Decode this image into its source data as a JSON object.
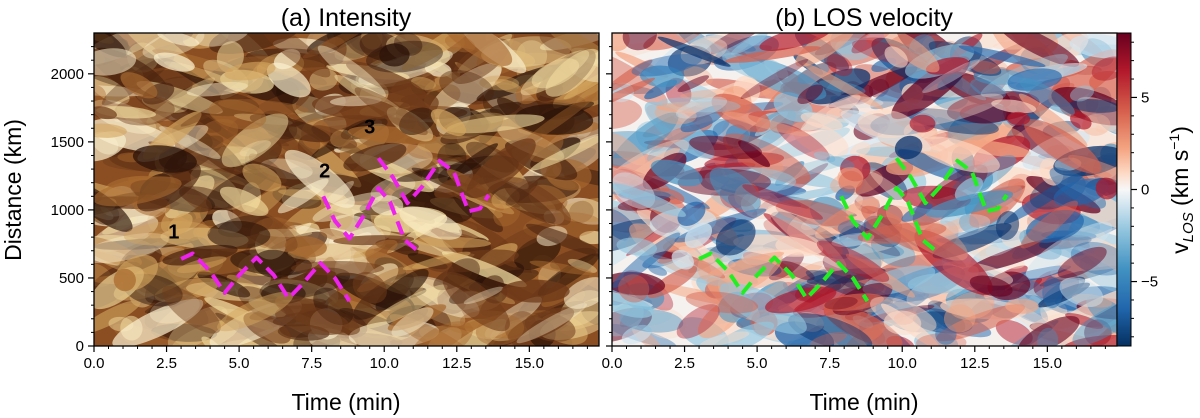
{
  "chart_data": [
    {
      "type": "heatmap",
      "title": "(a) Intensity",
      "xlabel": "Time (min)",
      "ylabel": "Distance (km)",
      "xlim": [
        0,
        17.4
      ],
      "ylim": [
        0,
        2300
      ],
      "xticks": [
        0.0,
        2.5,
        5.0,
        7.5,
        10.0,
        12.5,
        15.0
      ],
      "xtick_labels": [
        "0.0",
        "2.5",
        "5.0",
        "7.5",
        "10.0",
        "12.5",
        "15.0"
      ],
      "yticks": [
        0,
        500,
        1000,
        1500,
        2000
      ],
      "ytick_labels": [
        "0",
        "500",
        "1000",
        "1500",
        "2000"
      ],
      "colormap": "copper (dark brown to light cream)",
      "overlay_color": "#ee22ee",
      "annotations": [
        {
          "label": "1",
          "x": 2.75,
          "y": 790
        },
        {
          "label": "2",
          "x": 7.95,
          "y": 1240
        },
        {
          "label": "3",
          "x": 9.5,
          "y": 1560
        }
      ],
      "series": [
        {
          "name": "1",
          "x": [
            3.0,
            3.4,
            4.0,
            4.5,
            5.0,
            5.6,
            6.2,
            6.7,
            7.2,
            7.8,
            8.3,
            8.8
          ],
          "y": [
            640,
            680,
            550,
            390,
            520,
            650,
            520,
            350,
            460,
            610,
            500,
            330
          ]
        },
        {
          "name": "2",
          "x": [
            7.9,
            8.3,
            8.8,
            9.3,
            9.8,
            10.2,
            10.7,
            11.1
          ],
          "y": [
            1100,
            920,
            790,
            960,
            1160,
            1060,
            780,
            710
          ]
        },
        {
          "name": "3",
          "x": [
            9.8,
            10.3,
            10.8,
            11.3,
            11.9,
            12.4,
            12.9,
            13.3,
            13.6
          ],
          "y": [
            1380,
            1240,
            1050,
            1170,
            1360,
            1280,
            990,
            1010,
            1110
          ]
        }
      ]
    },
    {
      "type": "heatmap",
      "title": "(b) LOS velocity",
      "xlabel": "Time (min)",
      "xlim": [
        0,
        17.4
      ],
      "ylim": [
        0,
        2300
      ],
      "xticks": [
        0.0,
        2.5,
        5.0,
        7.5,
        10.0,
        12.5,
        15.0
      ],
      "xtick_labels": [
        "0.0",
        "2.5",
        "5.0",
        "7.5",
        "10.0",
        "12.5",
        "15.0"
      ],
      "yticks": [
        0,
        500,
        1000,
        1500,
        2000
      ],
      "colormap": "RdBu diverging (blue negative, red positive)",
      "overlay_color": "#22ee22",
      "colorbar": {
        "label": "v_LOS (km s⁻¹)",
        "label_v": "v",
        "label_sub": "LOS",
        "label_units": " (km s",
        "label_sup": "−1",
        "label_close": ")",
        "range": [
          -8.5,
          8.5
        ],
        "ticks": [
          -5,
          0,
          5
        ],
        "tick_labels": [
          "−5",
          "0",
          "5"
        ]
      },
      "series": [
        {
          "name": "1",
          "x": [
            3.0,
            3.4,
            4.0,
            4.5,
            5.0,
            5.6,
            6.2,
            6.7,
            7.2,
            7.8,
            8.3,
            8.8
          ],
          "y": [
            640,
            680,
            550,
            390,
            520,
            650,
            520,
            350,
            460,
            610,
            500,
            330
          ]
        },
        {
          "name": "2",
          "x": [
            7.9,
            8.3,
            8.8,
            9.3,
            9.8,
            10.2,
            10.7,
            11.1
          ],
          "y": [
            1100,
            920,
            790,
            960,
            1160,
            1060,
            780,
            710
          ]
        },
        {
          "name": "3",
          "x": [
            9.8,
            10.3,
            10.8,
            11.3,
            11.9,
            12.4,
            12.9,
            13.3,
            13.6
          ],
          "y": [
            1380,
            1240,
            1050,
            1170,
            1360,
            1280,
            990,
            1010,
            1110
          ]
        }
      ]
    }
  ]
}
